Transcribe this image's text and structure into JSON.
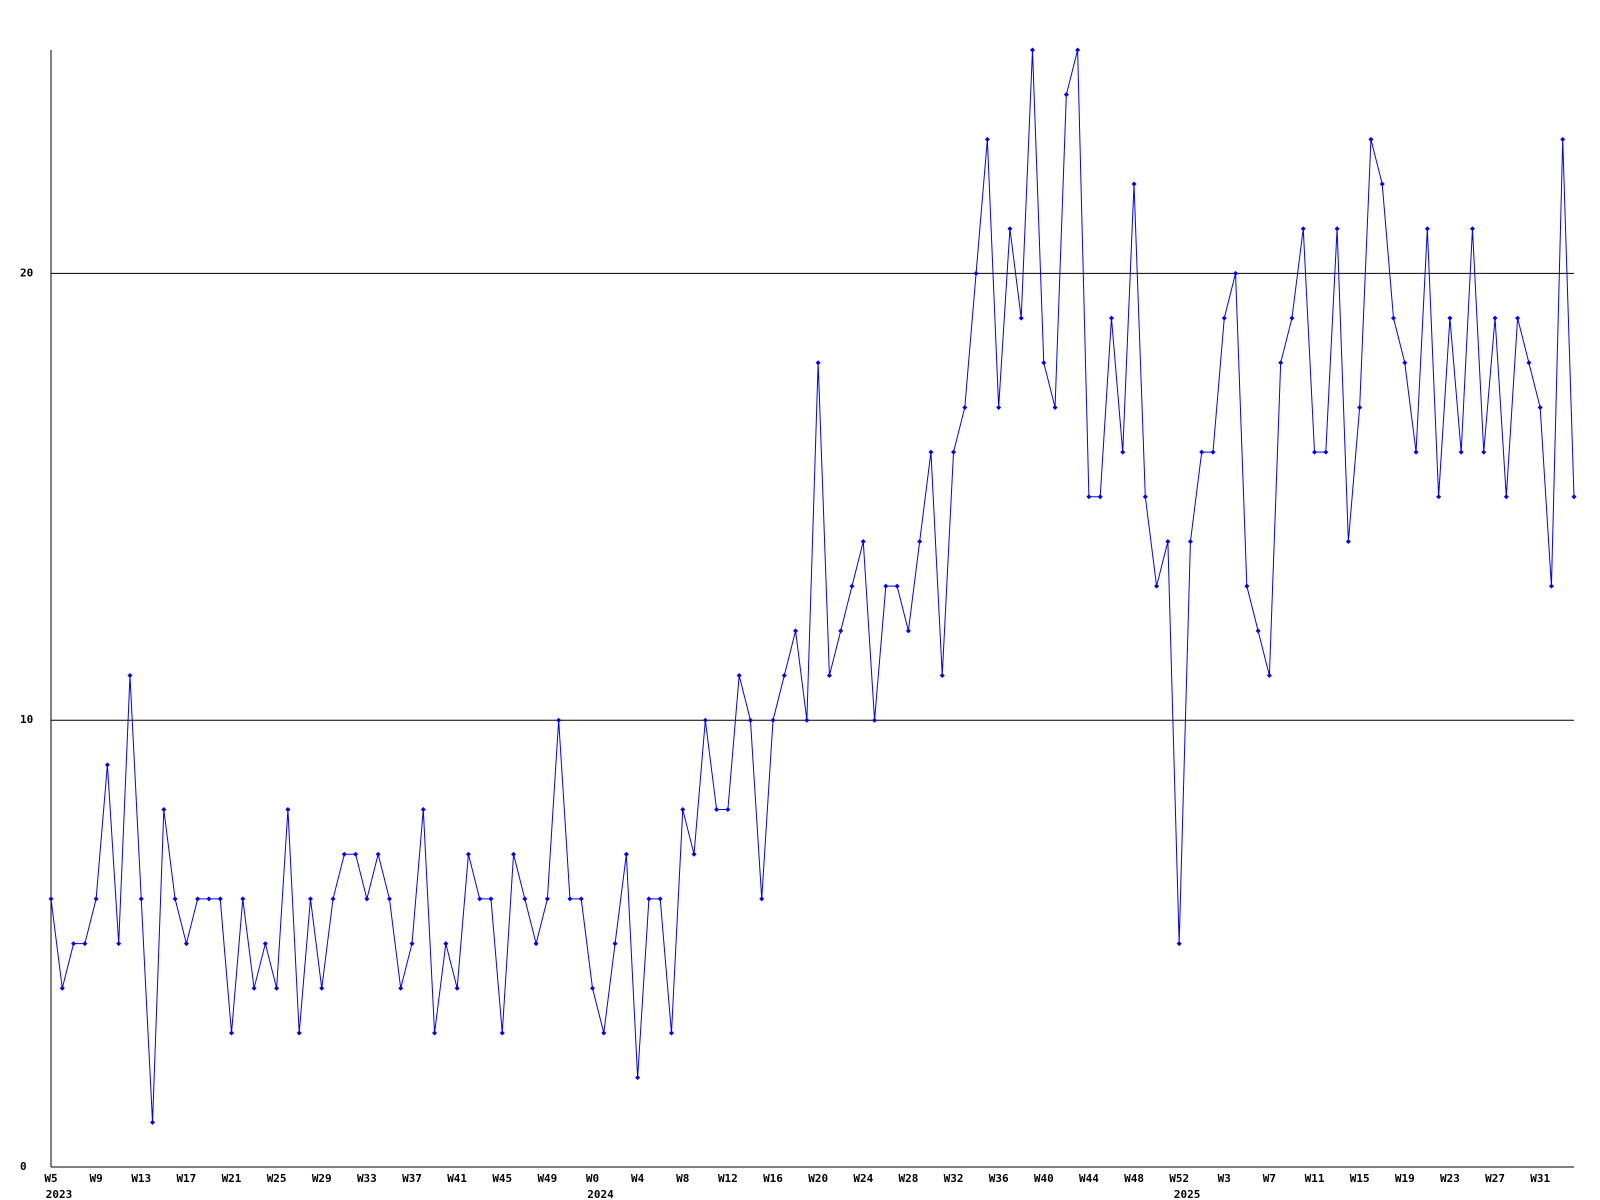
{
  "chart_data": {
    "type": "line",
    "categories": [
      "W5",
      null,
      null,
      null,
      "W9",
      null,
      null,
      null,
      "W13",
      null,
      null,
      null,
      "W17",
      null,
      null,
      null,
      "W21",
      null,
      null,
      null,
      "W25",
      null,
      null,
      null,
      "W29",
      null,
      null,
      null,
      "W33",
      null,
      null,
      null,
      "W37",
      null,
      null,
      null,
      "W41",
      null,
      null,
      null,
      "W45",
      null,
      null,
      null,
      "W49",
      null,
      null,
      null,
      "W0",
      null,
      null,
      null,
      "W4",
      null,
      null,
      null,
      "W8",
      null,
      null,
      null,
      "W12",
      null,
      null,
      null,
      "W16",
      null,
      null,
      null,
      "W20",
      null,
      null,
      null,
      "W24",
      null,
      null,
      null,
      "W28",
      null,
      null,
      null,
      "W32",
      null,
      null,
      null,
      "W36",
      null,
      null,
      null,
      "W40",
      null,
      null,
      null,
      "W44",
      null,
      null,
      null,
      "W48",
      null,
      null,
      null,
      "W52",
      null,
      null,
      null,
      "W3",
      null,
      null,
      null,
      "W7",
      null,
      null,
      null,
      "W11",
      null,
      null,
      null,
      "W15",
      null,
      null,
      null,
      "W19",
      null,
      null,
      null,
      "W23",
      null,
      null,
      null,
      "W27",
      null,
      null,
      null,
      "W31",
      null,
      null,
      null
    ],
    "years": [
      "2023",
      null,
      null,
      null,
      null,
      null,
      null,
      null,
      null,
      null,
      null,
      null,
      null,
      null,
      null,
      null,
      null,
      null,
      null,
      null,
      null,
      null,
      null,
      null,
      null,
      null,
      null,
      null,
      null,
      null,
      null,
      null,
      null,
      null,
      null,
      null,
      null,
      null,
      null,
      null,
      null,
      null,
      null,
      null,
      null,
      null,
      null,
      null,
      "2024",
      null,
      null,
      null,
      null,
      null,
      null,
      null,
      null,
      null,
      null,
      null,
      null,
      null,
      null,
      null,
      null,
      null,
      null,
      null,
      null,
      null,
      null,
      null,
      null,
      null,
      null,
      null,
      null,
      null,
      null,
      null,
      null,
      null,
      null,
      null,
      null,
      null,
      null,
      null,
      null,
      null,
      null,
      null,
      null,
      null,
      null,
      null,
      null,
      null,
      null,
      null,
      "2025",
      null,
      null,
      null,
      null,
      null,
      null,
      null,
      null,
      null,
      null,
      null,
      null,
      null,
      null,
      null,
      null,
      null,
      null,
      null,
      null,
      null,
      null,
      null,
      null,
      null,
      null,
      null,
      null,
      null,
      null,
      null,
      null,
      null,
      null,
      null
    ],
    "values": [
      6,
      4,
      5,
      5,
      6,
      9,
      5,
      11,
      6,
      1,
      8,
      6,
      5,
      6,
      6,
      6,
      3,
      6,
      4,
      5,
      4,
      8,
      3,
      6,
      4,
      6,
      7,
      7,
      6,
      7,
      6,
      4,
      5,
      8,
      3,
      5,
      4,
      7,
      6,
      6,
      3,
      7,
      6,
      5,
      6,
      10,
      6,
      6,
      4,
      3,
      5,
      7,
      2,
      6,
      6,
      3,
      8,
      7,
      10,
      8,
      8,
      11,
      10,
      6,
      10,
      11,
      12,
      10,
      18,
      11,
      12,
      13,
      14,
      10,
      13,
      13,
      12,
      14,
      16,
      11,
      16,
      17,
      20,
      23,
      17,
      21,
      19,
      25,
      18,
      17,
      24,
      25,
      15,
      15,
      19,
      16,
      22,
      15,
      13,
      14,
      5,
      14,
      16,
      16,
      19,
      20,
      13,
      12,
      11,
      18,
      19,
      21,
      16,
      16,
      21,
      14,
      17,
      23,
      22,
      19,
      18,
      16,
      21,
      15,
      19,
      16,
      21,
      16,
      19,
      15,
      19,
      18,
      17,
      13,
      23,
      15
    ],
    "color": "#0000ff",
    "ylim": [
      0,
      25
    ],
    "yticks": [
      0,
      10,
      20
    ],
    "grid": true
  }
}
